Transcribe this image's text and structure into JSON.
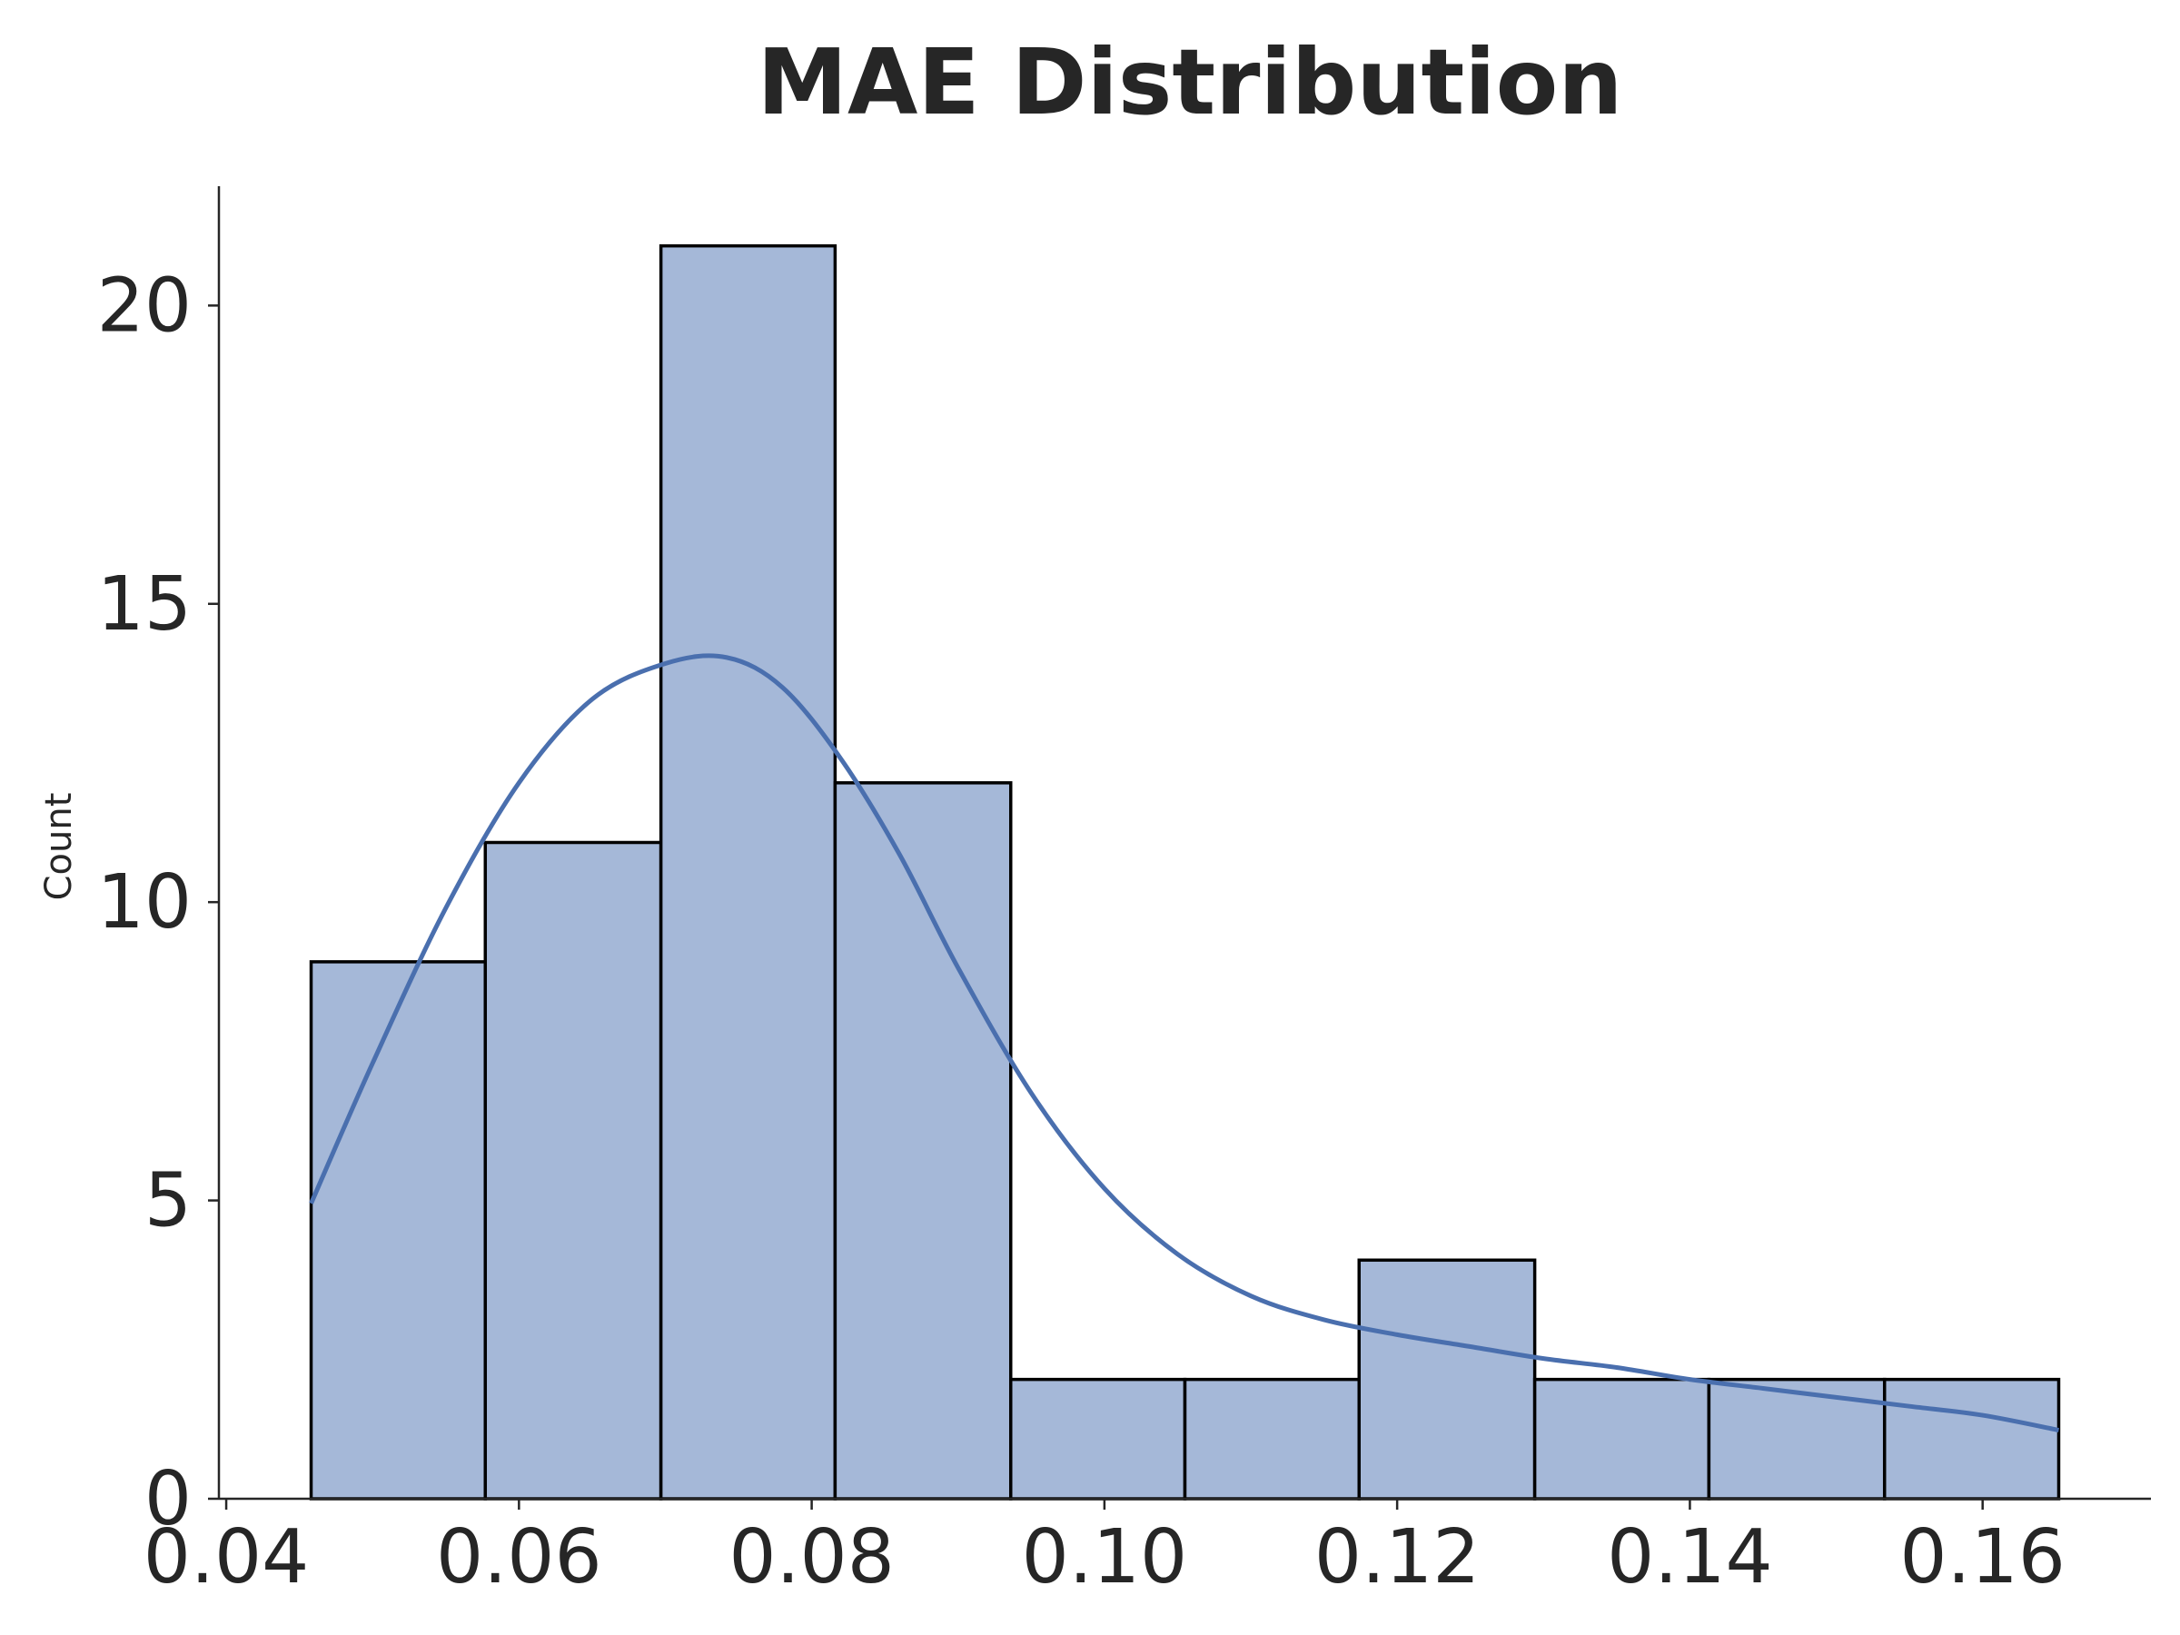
{
  "chart_data": {
    "type": "bar",
    "title": "MAE Distribution",
    "xlabel": "",
    "ylabel": "Count",
    "xlim": [
      0.0395,
      0.1715
    ],
    "ylim": [
      0,
      22
    ],
    "x_ticks": [
      {
        "value": 0.04,
        "label": "0.04"
      },
      {
        "value": 0.06,
        "label": "0.06"
      },
      {
        "value": 0.08,
        "label": "0.08"
      },
      {
        "value": 0.1,
        "label": "0.10"
      },
      {
        "value": 0.12,
        "label": "0.12"
      },
      {
        "value": 0.14,
        "label": "0.14"
      },
      {
        "value": 0.16,
        "label": "0.16"
      }
    ],
    "y_ticks": [
      {
        "value": 0,
        "label": "0"
      },
      {
        "value": 5,
        "label": "5"
      },
      {
        "value": 10,
        "label": "10"
      },
      {
        "value": 15,
        "label": "15"
      },
      {
        "value": 20,
        "label": "20"
      }
    ],
    "bins": [
      {
        "start": 0.0458,
        "end": 0.0577,
        "count": 9
      },
      {
        "start": 0.0577,
        "end": 0.0697,
        "count": 11
      },
      {
        "start": 0.0697,
        "end": 0.0816,
        "count": 21
      },
      {
        "start": 0.0816,
        "end": 0.0936,
        "count": 12
      },
      {
        "start": 0.0936,
        "end": 0.1055,
        "count": 2
      },
      {
        "start": 0.1055,
        "end": 0.1174,
        "count": 2
      },
      {
        "start": 0.1174,
        "end": 0.1294,
        "count": 4
      },
      {
        "start": 0.1294,
        "end": 0.1413,
        "count": 2
      },
      {
        "start": 0.1413,
        "end": 0.1533,
        "count": 2
      },
      {
        "start": 0.1533,
        "end": 0.1652,
        "count": 2
      }
    ],
    "kde_curve": {
      "x": [
        0.0458,
        0.05,
        0.055,
        0.06,
        0.065,
        0.07,
        0.0742,
        0.078,
        0.082,
        0.086,
        0.09,
        0.095,
        0.1,
        0.105,
        0.11,
        0.115,
        0.12,
        0.125,
        0.13,
        0.135,
        0.14,
        0.145,
        0.15,
        0.155,
        0.16,
        0.1652
      ],
      "y": [
        4.95,
        7.3,
        9.9,
        12.0,
        13.4,
        14.0,
        14.1,
        13.6,
        12.4,
        10.8,
        8.9,
        6.8,
        5.2,
        4.1,
        3.4,
        3.0,
        2.75,
        2.55,
        2.35,
        2.2,
        2.0,
        1.85,
        1.7,
        1.55,
        1.4,
        1.15
      ]
    },
    "grid": false,
    "legend": "none",
    "colors": {
      "bar_fill": "#a5b8d8",
      "bar_edge": "#000000",
      "kde_line": "#4a6fae",
      "text": "#262626"
    }
  }
}
